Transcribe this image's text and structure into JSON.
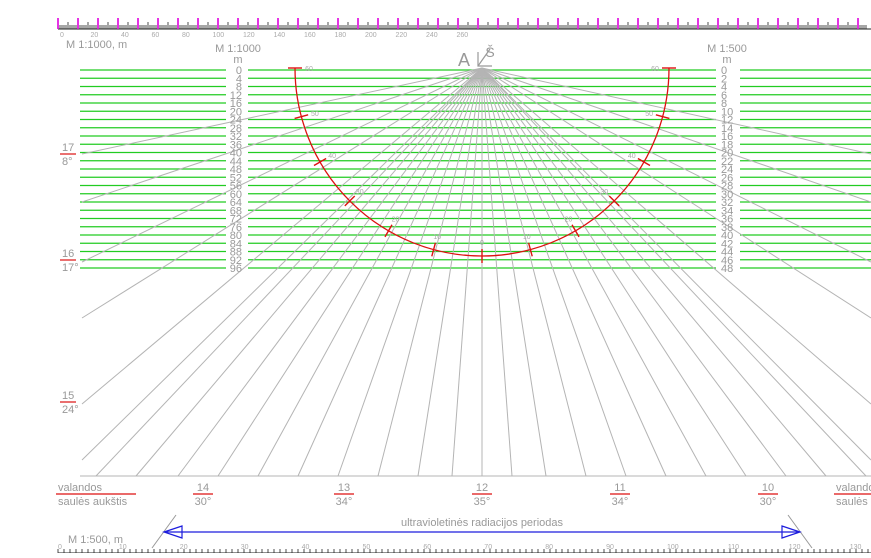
{
  "top_scale": {
    "label": "M 1:1000, m",
    "ticks": [
      "0",
      "20",
      "40",
      "60",
      "80",
      "100",
      "120",
      "140",
      "160",
      "180",
      "200",
      "220",
      "240",
      "260"
    ]
  },
  "bottom_scale": {
    "label": "M 1:500, m",
    "ticks": [
      "0",
      "10",
      "20",
      "30",
      "40",
      "50",
      "60",
      "70",
      "80",
      "90",
      "100",
      "110",
      "120",
      "130"
    ]
  },
  "left_axis": {
    "scale_label": "M 1:1000",
    "unit": "m",
    "values": [
      "0",
      "4",
      "8",
      "12",
      "16",
      "20",
      "24",
      "28",
      "32",
      "36",
      "40",
      "44",
      "48",
      "52",
      "56",
      "60",
      "64",
      "68",
      "72",
      "76",
      "80",
      "84",
      "88",
      "92",
      "96"
    ]
  },
  "right_axis": {
    "scale_label": "M 1:500",
    "unit": "m",
    "values": [
      "0",
      "2",
      "4",
      "6",
      "8",
      "10",
      "12",
      "14",
      "16",
      "18",
      "20",
      "22",
      "24",
      "26",
      "28",
      "30",
      "32",
      "34",
      "36",
      "38",
      "40",
      "42",
      "44",
      "46",
      "48"
    ]
  },
  "compass": {
    "a": "A",
    "s": "Š"
  },
  "arc_labels": [
    "60",
    "50",
    "40",
    "30",
    "20",
    "10",
    "0",
    "10",
    "20",
    "30",
    "40",
    "50",
    "60"
  ],
  "left_side_labels": [
    {
      "hour": "17",
      "alt": "8°"
    },
    {
      "hour": "16",
      "alt": "17°"
    },
    {
      "hour": "15",
      "alt": "24°"
    }
  ],
  "bottom_labels": [
    {
      "hour": "14",
      "alt": "30°"
    },
    {
      "hour": "13",
      "alt": "34°"
    },
    {
      "hour": "12",
      "alt": "35°"
    },
    {
      "hour": "11",
      "alt": "34°"
    },
    {
      "hour": "10",
      "alt": "30°"
    }
  ],
  "legend": {
    "hours": "valandos",
    "altitude": "saulės aukštis"
  },
  "legend_right": {
    "hours": "valando",
    "altitude": "saulės a"
  },
  "uv_label": "ultravioletinės radiacijos periodas",
  "colors": {
    "grid_green": "#22cc22",
    "ray_gray": "#b4b4b4",
    "arc_red": "#dd1111",
    "uv_blue": "#1c1cdd",
    "ruler_magenta": "#dd00dd",
    "label_red": "#dd1111"
  }
}
